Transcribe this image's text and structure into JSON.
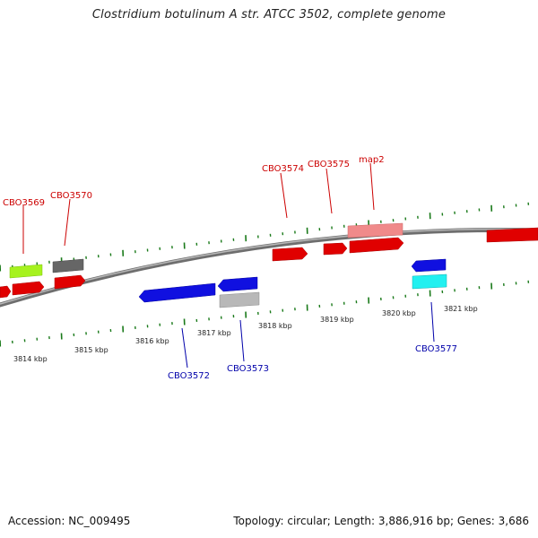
{
  "title": "Clostridium botulinum A str. ATCC 3502, complete genome",
  "footer": {
    "accession": "Accession: NC_009495",
    "info": "Topology: circular; Length: 3,886,916 bp; Genes: 3,686"
  },
  "colors": {
    "forward_label": "#cc0000",
    "reverse_label": "#0000aa",
    "tick": "#1a7a1a",
    "backbone": "#8a8a8a"
  },
  "scale": {
    "tick_labels": [
      "3814 kbp",
      "3815 kbp",
      "3816 kbp",
      "3817 kbp",
      "3818 kbp",
      "3819 kbp",
      "3820 kbp",
      "3821 kbp"
    ]
  },
  "gene_labels": [
    {
      "id": "CBO3569",
      "text": "CBO3569",
      "strand": "forward"
    },
    {
      "id": "CBO3570",
      "text": "CBO3570",
      "strand": "forward"
    },
    {
      "id": "CBO3574",
      "text": "CBO3574",
      "strand": "forward"
    },
    {
      "id": "CBO3575",
      "text": "CBO3575",
      "strand": "forward"
    },
    {
      "id": "map2",
      "text": "map2",
      "strand": "forward"
    },
    {
      "id": "CBO3572",
      "text": "CBO3572",
      "strand": "reverse"
    },
    {
      "id": "CBO3573",
      "text": "CBO3573",
      "strand": "reverse"
    },
    {
      "id": "CBO3577",
      "text": "CBO3577",
      "strand": "reverse"
    }
  ]
}
